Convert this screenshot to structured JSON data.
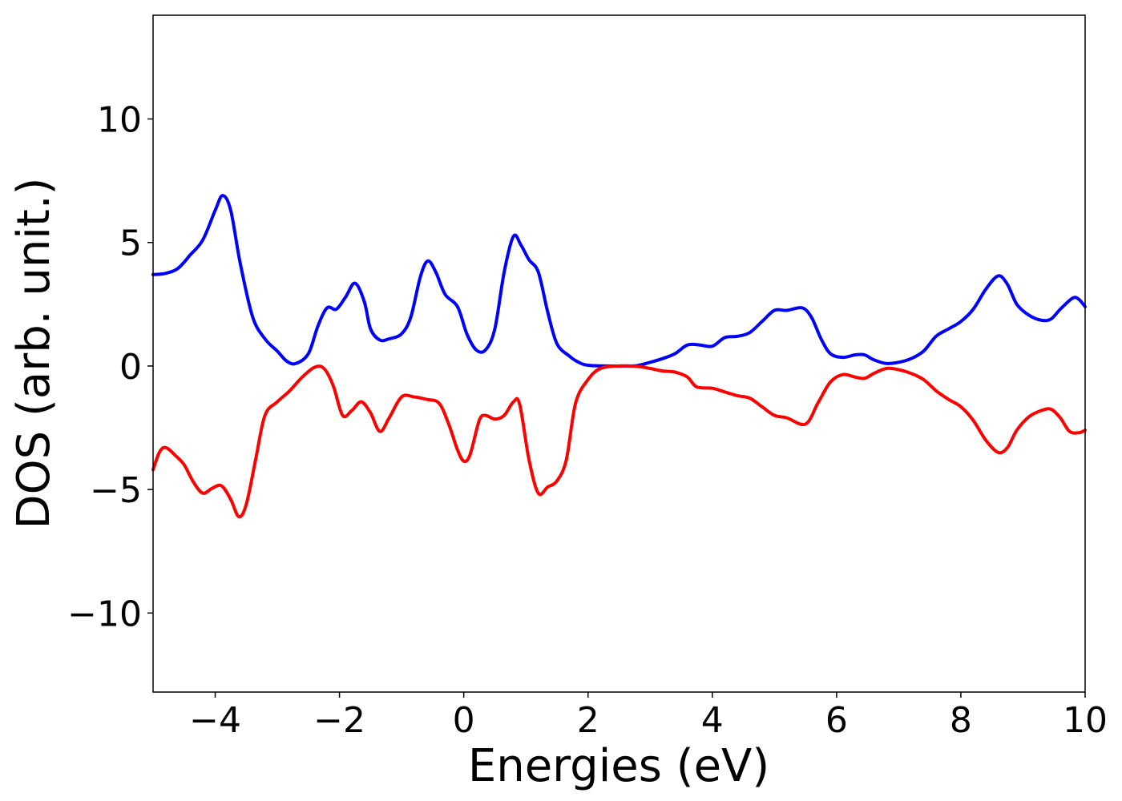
{
  "chart_data": {
    "type": "line",
    "xlabel": "Energies (eV)",
    "ylabel": "DOS (arb. unit.)",
    "xlim": [
      -5,
      10
    ],
    "ylim": [
      -13.2,
      14.2
    ],
    "grid": false,
    "x_ticks": [
      {
        "value": -4,
        "label": "−4"
      },
      {
        "value": -2,
        "label": "−2"
      },
      {
        "value": 0,
        "label": "0"
      },
      {
        "value": 2,
        "label": "2"
      },
      {
        "value": 4,
        "label": "4"
      },
      {
        "value": 6,
        "label": "6"
      },
      {
        "value": 8,
        "label": "8"
      },
      {
        "value": 10,
        "label": "10"
      }
    ],
    "y_ticks": [
      {
        "value": -10,
        "label": "−10"
      },
      {
        "value": -5,
        "label": "−5"
      },
      {
        "value": 0,
        "label": "0"
      },
      {
        "value": 5,
        "label": "5"
      },
      {
        "value": 10,
        "label": "10"
      }
    ],
    "series": [
      {
        "color": "#0000ff",
        "points": [
          [
            -5.0,
            3.7
          ],
          [
            -4.8,
            3.75
          ],
          [
            -4.6,
            3.95
          ],
          [
            -4.4,
            4.5
          ],
          [
            -4.2,
            5.1
          ],
          [
            -4.0,
            6.3
          ],
          [
            -3.88,
            6.9
          ],
          [
            -3.75,
            6.3
          ],
          [
            -3.6,
            4.2
          ],
          [
            -3.4,
            2.0
          ],
          [
            -3.2,
            1.1
          ],
          [
            -3.0,
            0.6
          ],
          [
            -2.85,
            0.2
          ],
          [
            -2.7,
            0.1
          ],
          [
            -2.5,
            0.5
          ],
          [
            -2.35,
            1.6
          ],
          [
            -2.2,
            2.35
          ],
          [
            -2.05,
            2.3
          ],
          [
            -1.9,
            2.8
          ],
          [
            -1.75,
            3.35
          ],
          [
            -1.6,
            2.6
          ],
          [
            -1.5,
            1.5
          ],
          [
            -1.35,
            1.05
          ],
          [
            -1.2,
            1.1
          ],
          [
            -1.0,
            1.3
          ],
          [
            -0.85,
            2.0
          ],
          [
            -0.7,
            3.6
          ],
          [
            -0.58,
            4.25
          ],
          [
            -0.45,
            3.8
          ],
          [
            -0.3,
            2.9
          ],
          [
            -0.1,
            2.4
          ],
          [
            0.05,
            1.3
          ],
          [
            0.2,
            0.65
          ],
          [
            0.35,
            0.65
          ],
          [
            0.5,
            1.5
          ],
          [
            0.65,
            3.8
          ],
          [
            0.8,
            5.25
          ],
          [
            0.92,
            4.9
          ],
          [
            1.05,
            4.3
          ],
          [
            1.2,
            3.8
          ],
          [
            1.35,
            2.2
          ],
          [
            1.5,
            0.9
          ],
          [
            1.7,
            0.4
          ],
          [
            1.85,
            0.15
          ],
          [
            2.0,
            0.03
          ],
          [
            2.3,
            0.0
          ],
          [
            2.6,
            0.0
          ],
          [
            2.8,
            0.02
          ],
          [
            3.0,
            0.15
          ],
          [
            3.2,
            0.3
          ],
          [
            3.4,
            0.5
          ],
          [
            3.6,
            0.85
          ],
          [
            3.8,
            0.85
          ],
          [
            4.0,
            0.8
          ],
          [
            4.2,
            1.15
          ],
          [
            4.4,
            1.2
          ],
          [
            4.6,
            1.35
          ],
          [
            4.8,
            1.8
          ],
          [
            5.0,
            2.25
          ],
          [
            5.2,
            2.25
          ],
          [
            5.45,
            2.35
          ],
          [
            5.6,
            1.95
          ],
          [
            5.75,
            1.1
          ],
          [
            5.9,
            0.5
          ],
          [
            6.1,
            0.35
          ],
          [
            6.3,
            0.45
          ],
          [
            6.45,
            0.45
          ],
          [
            6.6,
            0.25
          ],
          [
            6.8,
            0.1
          ],
          [
            7.0,
            0.15
          ],
          [
            7.2,
            0.3
          ],
          [
            7.4,
            0.6
          ],
          [
            7.6,
            1.2
          ],
          [
            7.8,
            1.5
          ],
          [
            8.0,
            1.8
          ],
          [
            8.2,
            2.3
          ],
          [
            8.4,
            3.1
          ],
          [
            8.6,
            3.65
          ],
          [
            8.75,
            3.3
          ],
          [
            8.9,
            2.5
          ],
          [
            9.1,
            2.05
          ],
          [
            9.3,
            1.85
          ],
          [
            9.45,
            1.9
          ],
          [
            9.6,
            2.3
          ],
          [
            9.8,
            2.75
          ],
          [
            9.9,
            2.7
          ],
          [
            10.0,
            2.4
          ]
        ]
      },
      {
        "color": "#ff0000",
        "points": [
          [
            -5.0,
            -4.2
          ],
          [
            -4.9,
            -3.5
          ],
          [
            -4.8,
            -3.3
          ],
          [
            -4.65,
            -3.6
          ],
          [
            -4.5,
            -4.0
          ],
          [
            -4.35,
            -4.7
          ],
          [
            -4.2,
            -5.15
          ],
          [
            -4.05,
            -4.95
          ],
          [
            -3.9,
            -4.85
          ],
          [
            -3.75,
            -5.4
          ],
          [
            -3.62,
            -6.1
          ],
          [
            -3.5,
            -5.6
          ],
          [
            -3.35,
            -3.8
          ],
          [
            -3.2,
            -2.0
          ],
          [
            -3.0,
            -1.45
          ],
          [
            -2.8,
            -1.0
          ],
          [
            -2.6,
            -0.45
          ],
          [
            -2.4,
            -0.05
          ],
          [
            -2.25,
            -0.1
          ],
          [
            -2.1,
            -0.8
          ],
          [
            -1.95,
            -2.0
          ],
          [
            -1.8,
            -1.8
          ],
          [
            -1.65,
            -1.45
          ],
          [
            -1.5,
            -1.9
          ],
          [
            -1.35,
            -2.65
          ],
          [
            -1.2,
            -2.1
          ],
          [
            -1.0,
            -1.25
          ],
          [
            -0.8,
            -1.25
          ],
          [
            -0.6,
            -1.35
          ],
          [
            -0.4,
            -1.5
          ],
          [
            -0.25,
            -2.3
          ],
          [
            -0.1,
            -3.4
          ],
          [
            0.0,
            -3.85
          ],
          [
            0.1,
            -3.6
          ],
          [
            0.25,
            -2.2
          ],
          [
            0.35,
            -2.0
          ],
          [
            0.5,
            -2.15
          ],
          [
            0.65,
            -2.0
          ],
          [
            0.8,
            -1.45
          ],
          [
            0.9,
            -1.55
          ],
          [
            1.05,
            -3.8
          ],
          [
            1.2,
            -5.15
          ],
          [
            1.35,
            -4.9
          ],
          [
            1.5,
            -4.65
          ],
          [
            1.65,
            -3.8
          ],
          [
            1.8,
            -1.5
          ],
          [
            2.0,
            -0.55
          ],
          [
            2.2,
            -0.1
          ],
          [
            2.5,
            0.0
          ],
          [
            2.8,
            -0.02
          ],
          [
            3.0,
            -0.1
          ],
          [
            3.2,
            -0.2
          ],
          [
            3.4,
            -0.25
          ],
          [
            3.6,
            -0.45
          ],
          [
            3.75,
            -0.85
          ],
          [
            4.0,
            -0.9
          ],
          [
            4.2,
            -1.05
          ],
          [
            4.4,
            -1.2
          ],
          [
            4.6,
            -1.3
          ],
          [
            4.8,
            -1.65
          ],
          [
            5.0,
            -2.0
          ],
          [
            5.2,
            -2.1
          ],
          [
            5.5,
            -2.35
          ],
          [
            5.7,
            -1.5
          ],
          [
            5.9,
            -0.65
          ],
          [
            6.1,
            -0.35
          ],
          [
            6.3,
            -0.45
          ],
          [
            6.45,
            -0.5
          ],
          [
            6.6,
            -0.3
          ],
          [
            6.8,
            -0.1
          ],
          [
            7.0,
            -0.15
          ],
          [
            7.2,
            -0.3
          ],
          [
            7.4,
            -0.55
          ],
          [
            7.6,
            -1.0
          ],
          [
            7.8,
            -1.35
          ],
          [
            8.0,
            -1.65
          ],
          [
            8.2,
            -2.2
          ],
          [
            8.4,
            -3.0
          ],
          [
            8.6,
            -3.5
          ],
          [
            8.75,
            -3.3
          ],
          [
            8.9,
            -2.6
          ],
          [
            9.1,
            -2.05
          ],
          [
            9.3,
            -1.8
          ],
          [
            9.45,
            -1.75
          ],
          [
            9.6,
            -2.1
          ],
          [
            9.75,
            -2.65
          ],
          [
            9.9,
            -2.7
          ],
          [
            10.0,
            -2.6
          ]
        ]
      }
    ]
  }
}
